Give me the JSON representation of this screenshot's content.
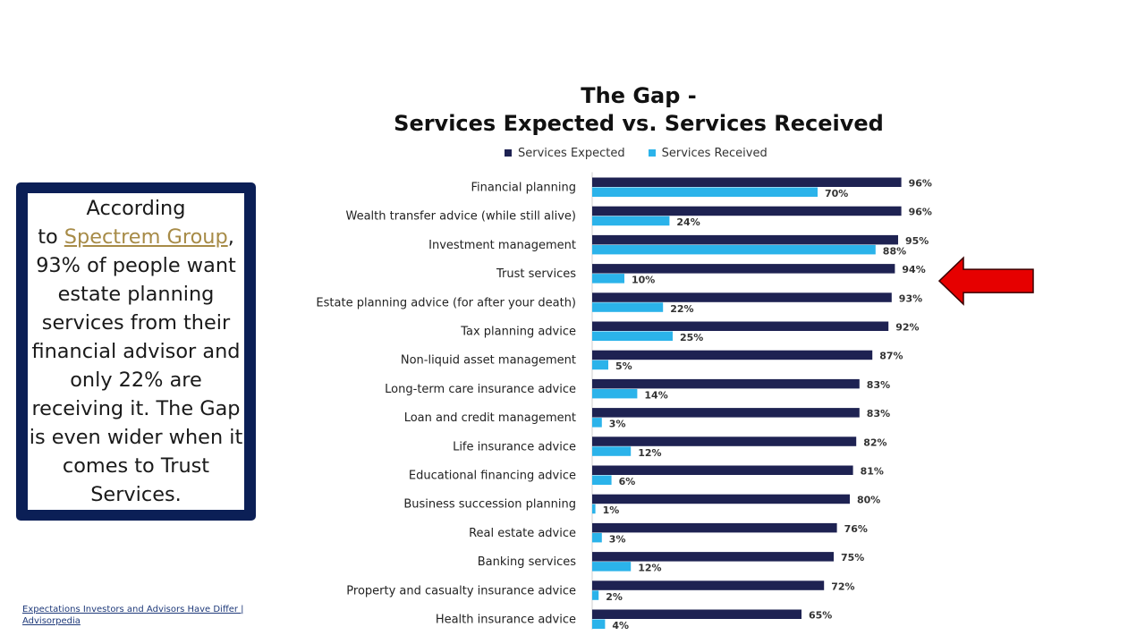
{
  "callout": {
    "line1": "According",
    "prefix": "to ",
    "link_text": "Spectrem ",
    "link_text_2": "Group",
    "body": ", 93% of people want estate planning services from their financial advisor and only 22% are receiving it.  The Gap is even wider when it comes to Trust Services."
  },
  "source": {
    "link_text": "Expectations Investors and Advisors Have Differ | Advisorpedia"
  },
  "colors": {
    "expected": "#1e2252",
    "received": "#2bb3ea",
    "arrow": "#e60000",
    "frame": "#0b1f56"
  },
  "chart_data": {
    "type": "bar",
    "orientation": "horizontal",
    "title_line1": "The Gap -",
    "title_line2": "Services Expected vs. Services Received",
    "legend": [
      "Services Expected",
      "Services Received"
    ],
    "categories": [
      "Financial planning",
      "Wealth transfer advice (while still alive)",
      "Investment management",
      "Trust services",
      "Estate planning advice (for after your death)",
      "Tax planning advice",
      "Non-liquid asset management",
      "Long-term care insurance advice",
      "Loan and credit management",
      "Life insurance advice",
      "Educational financing advice",
      "Business succession planning",
      "Real estate advice",
      "Banking services",
      "Property and casualty insurance advice",
      "Health insurance advice"
    ],
    "series": [
      {
        "name": "Services Expected",
        "values": [
          96,
          96,
          95,
          94,
          93,
          92,
          87,
          83,
          83,
          82,
          81,
          80,
          76,
          75,
          72,
          65
        ]
      },
      {
        "name": "Services Received",
        "values": [
          70,
          24,
          88,
          10,
          22,
          25,
          5,
          14,
          3,
          12,
          6,
          1,
          3,
          12,
          2,
          4
        ]
      }
    ],
    "value_suffix": "%",
    "xlim": [
      0,
      100
    ],
    "highlighted_category": "Trust services"
  }
}
